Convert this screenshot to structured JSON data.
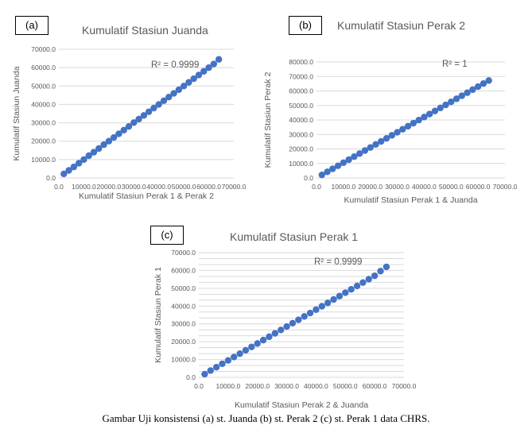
{
  "caption": "Gambar Uji konsistensi (a) st. Juanda (b) st. Perak 2 (c) st. Perak 1 data CHRS.",
  "colors": {
    "marker": "#4472C4",
    "grid": "#d9d9d9",
    "text": "#595959"
  },
  "chart_data": [
    {
      "type": "scatter",
      "label": "(a)",
      "title": "Kumulatif Stasiun Juanda",
      "xlabel": "Kumulatif Stasiun Perak 1 & Perak 2",
      "ylabel": "Kumulatif Stasiun Juanda",
      "xlim": [
        0,
        70000
      ],
      "ylim": [
        0,
        70000
      ],
      "xticks": [
        "0.0",
        "10000.0",
        "20000.0",
        "30000.0",
        "40000.0",
        "50000.0",
        "60000.0",
        "70000.0"
      ],
      "yticks": [
        "0.0",
        "10000.0",
        "20000.0",
        "30000.0",
        "40000.0",
        "50000.0",
        "60000.0",
        "70000.0"
      ],
      "annotation": "R² = 0.9999",
      "grid": true,
      "x": [
        2000,
        4000,
        6000,
        8000,
        10000,
        12000,
        14000,
        16000,
        18000,
        20000,
        22000,
        24000,
        26000,
        28000,
        30000,
        32000,
        34000,
        36000,
        38000,
        40000,
        42000,
        44000,
        46000,
        48000,
        50000,
        52000,
        54000,
        56000,
        58000,
        60000,
        62000,
        64000
      ],
      "y": [
        2200,
        4100,
        6000,
        8000,
        10000,
        12100,
        14000,
        16000,
        18100,
        20000,
        22000,
        24000,
        26000,
        28000,
        30100,
        32000,
        34000,
        36000,
        38000,
        40000,
        42000,
        44000,
        46000,
        48000,
        50000,
        52000,
        54000,
        56000,
        58000,
        60000,
        62000,
        64500
      ]
    },
    {
      "type": "scatter",
      "label": "(b)",
      "title": "Kumulatif Stasiun Perak 2",
      "xlabel": "Kumulatif Stasiun Perak 1 & Juanda",
      "ylabel": "Kumulatif Stasiun Perak 2",
      "xlim": [
        0,
        70000
      ],
      "ylim": [
        0,
        80000
      ],
      "xticks": [
        "0.0",
        "10000.0",
        "20000.0",
        "30000.0",
        "40000.0",
        "50000.0",
        "60000.0",
        "70000.0"
      ],
      "yticks": [
        "0.0",
        "10000.0",
        "20000.0",
        "30000.0",
        "40000.0",
        "50000.0",
        "60000.0",
        "70000.0",
        "80000.0"
      ],
      "annotation": "R² = 1",
      "grid": true,
      "x": [
        2000,
        4000,
        6000,
        8000,
        10000,
        12000,
        14000,
        16000,
        18000,
        20000,
        22000,
        24000,
        26000,
        28000,
        30000,
        32000,
        34000,
        36000,
        38000,
        40000,
        42000,
        44000,
        46000,
        48000,
        50000,
        52000,
        54000,
        56000,
        58000,
        60000,
        62000,
        64000
      ],
      "y": [
        2100,
        4200,
        6300,
        8400,
        10500,
        12600,
        14700,
        16800,
        18900,
        21000,
        23100,
        25200,
        27300,
        29400,
        31500,
        33600,
        35700,
        37800,
        39900,
        42000,
        44100,
        46200,
        48300,
        50400,
        52500,
        54600,
        56700,
        58800,
        60900,
        63000,
        65100,
        67200
      ]
    },
    {
      "type": "scatter",
      "label": "(c)",
      "title": "Kumulatif Stasiun Perak 1",
      "xlabel": "Kumulatif Stasiun Perak 2 & Juanda",
      "ylabel": "Kumulatif Stasiun Perak 1",
      "xlim": [
        0,
        70000
      ],
      "ylim": [
        0,
        70000
      ],
      "xticks": [
        "0.0",
        "10000.0",
        "20000.0",
        "30000.0",
        "40000.0",
        "50000.0",
        "60000.0",
        "70000.0"
      ],
      "yticks": [
        "0.0",
        "10000.0",
        "20000.0",
        "30000.0",
        "40000.0",
        "50000.0",
        "60000.0",
        "70000.0"
      ],
      "annotation": "R² = 0.9999",
      "grid": true,
      "x": [
        2000,
        4000,
        6000,
        8000,
        10000,
        12000,
        14000,
        16000,
        18000,
        20000,
        22000,
        24000,
        26000,
        28000,
        30000,
        32000,
        34000,
        36000,
        38000,
        40000,
        42000,
        44000,
        46000,
        48000,
        50000,
        52000,
        54000,
        56000,
        58000,
        60000,
        62000,
        64000
      ],
      "y": [
        1800,
        3800,
        5700,
        7600,
        9500,
        11400,
        13300,
        15200,
        17100,
        19000,
        20900,
        22800,
        24700,
        26600,
        28500,
        30400,
        32300,
        34200,
        36100,
        38000,
        39900,
        41800,
        43700,
        45600,
        47500,
        49400,
        51300,
        53200,
        55100,
        57000,
        59600,
        62000
      ]
    }
  ]
}
